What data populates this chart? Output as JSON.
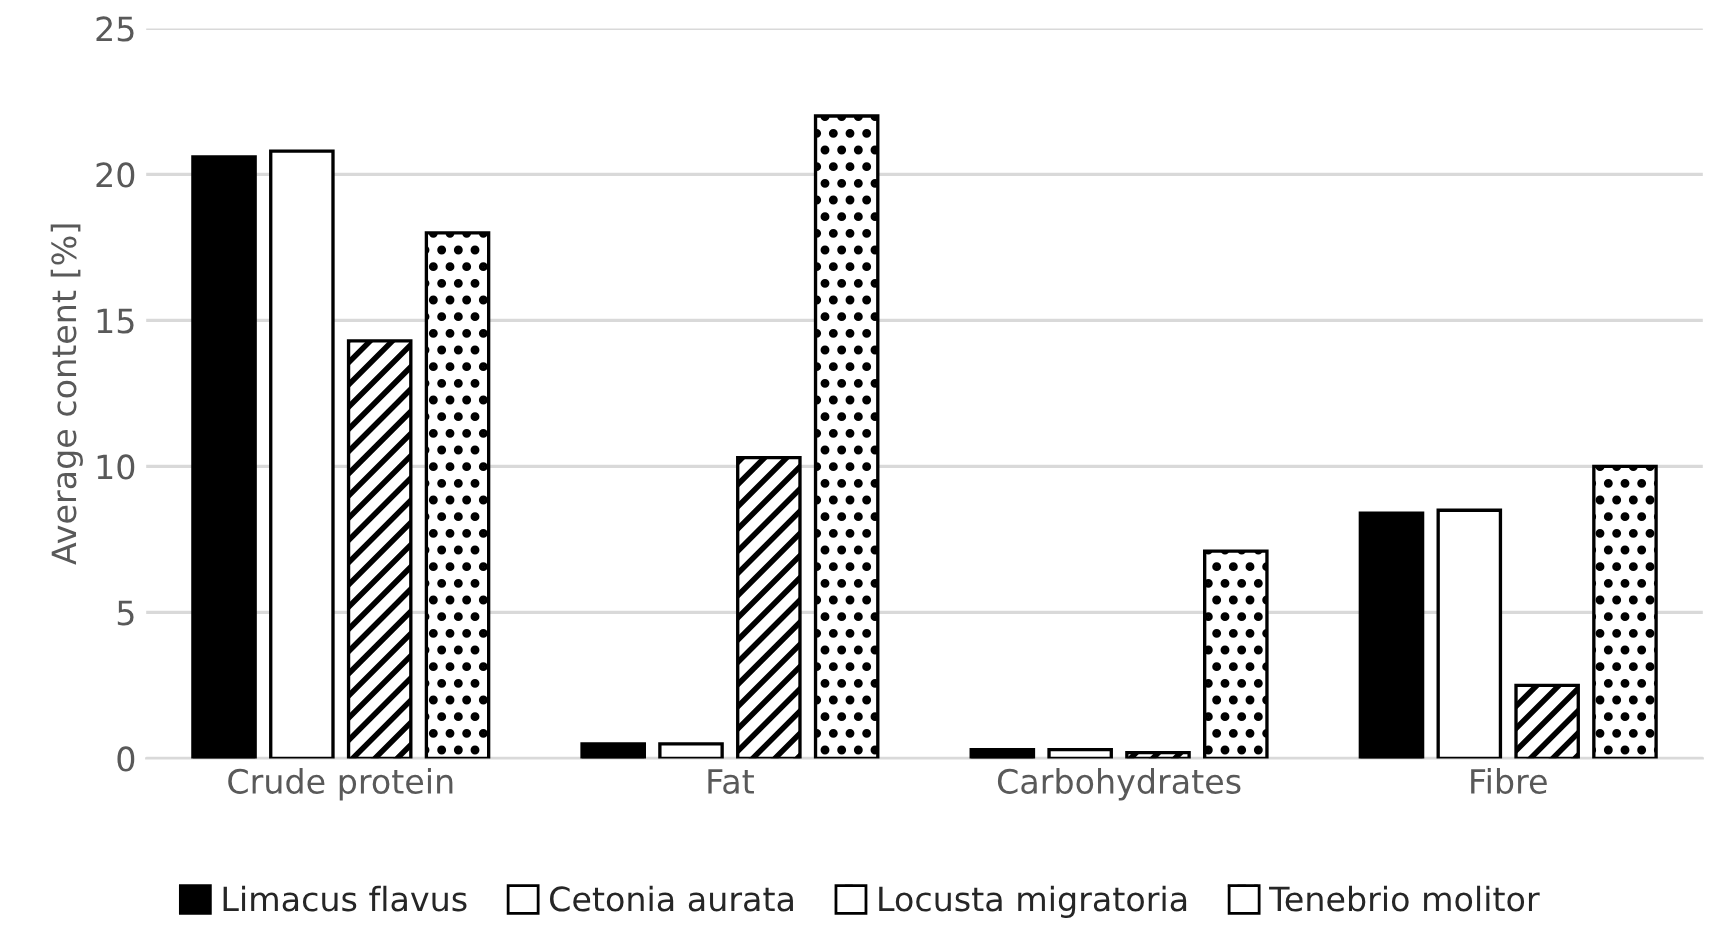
{
  "chart_data": {
    "type": "bar",
    "ylabel": "Average content [%]",
    "categories": [
      "Crude protein",
      "Fat",
      "Carbohydrates",
      "Fibre"
    ],
    "series": [
      {
        "name": "Limacus flavus",
        "color": "#000000",
        "values": [
          20.6,
          0.5,
          0.3,
          8.4
        ]
      },
      {
        "name": "Cetonia aurata",
        "color": "#ffffff",
        "values": [
          20.8,
          0.5,
          0.3,
          8.5
        ]
      },
      {
        "name": "Locusta migratoria",
        "color": "#ffffff",
        "values": [
          14.3,
          10.3,
          0.2,
          2.5
        ]
      },
      {
        "name": "Tenebrio molitor",
        "color": "#ffffff",
        "values": [
          18.0,
          22.0,
          7.1,
          10.0
        ]
      }
    ],
    "ylim": [
      0,
      25
    ],
    "yticks": [
      0,
      5,
      10,
      15,
      20,
      25
    ],
    "grid": "y",
    "legend": "bottom"
  }
}
